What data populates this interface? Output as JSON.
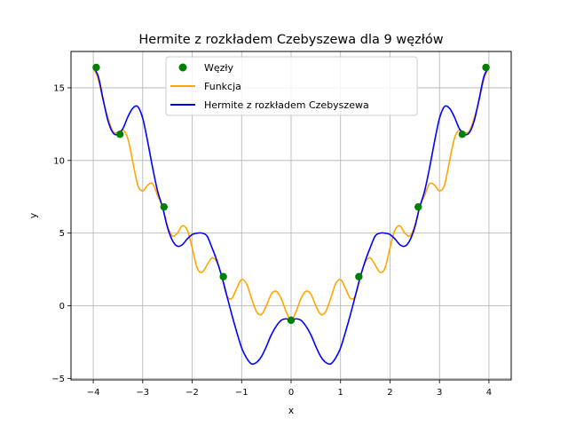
{
  "chart_data": {
    "type": "line",
    "title": "Hermite z rozkładem Czebyszewa dla 9 węzłów",
    "xlabel": "x",
    "ylabel": "y",
    "xlim": [
      -4.45,
      4.45
    ],
    "ylim": [
      -5.1,
      17.5
    ],
    "xticks": [
      -4,
      -3,
      -2,
      -1,
      0,
      1,
      2,
      3,
      4
    ],
    "yticks": [
      -5,
      0,
      5,
      10,
      15
    ],
    "grid": true,
    "legend_position": "top-center",
    "series": [
      {
        "name": "Węzły",
        "kind": "scatter",
        "color": "#008000",
        "x": [
          -3.94,
          -3.46,
          -2.57,
          -1.37,
          0.0,
          1.37,
          2.57,
          3.46,
          3.94
        ],
        "y": [
          16.4,
          11.8,
          6.8,
          2.0,
          -1.0,
          2.0,
          6.8,
          11.8,
          16.4
        ]
      },
      {
        "name": "Funkcja",
        "kind": "line",
        "color": "#FFA500",
        "x": [
          -4.0,
          -3.9,
          -3.8,
          -3.7,
          -3.6,
          -3.5,
          -3.4,
          -3.3,
          -3.2,
          -3.1,
          -3.0,
          -2.9,
          -2.8,
          -2.7,
          -2.6,
          -2.5,
          -2.4,
          -2.3,
          -2.2,
          -2.1,
          -2.0,
          -1.9,
          -1.8,
          -1.7,
          -1.6,
          -1.5,
          -1.4,
          -1.3,
          -1.2,
          -1.1,
          -1.0,
          -0.9,
          -0.8,
          -0.7,
          -0.6,
          -0.5,
          -0.4,
          -0.3,
          -0.2,
          -0.1,
          0.0,
          0.1,
          0.2,
          0.3,
          0.4,
          0.5,
          0.6,
          0.7,
          0.8,
          0.9,
          1.0,
          1.1,
          1.2,
          1.3,
          1.4,
          1.5,
          1.6,
          1.7,
          1.8,
          1.9,
          2.0,
          2.1,
          2.2,
          2.3,
          2.4,
          2.5,
          2.6,
          2.7,
          2.8,
          2.9,
          3.0,
          3.1,
          3.2,
          3.3,
          3.4,
          3.5,
          3.6,
          3.7,
          3.8,
          3.9,
          4.0
        ],
        "y": [
          16.4,
          15.6,
          14.1,
          12.9,
          12.0,
          11.9,
          12.1,
          11.5,
          9.9,
          8.3,
          7.9,
          8.3,
          8.4,
          7.6,
          6.8,
          5.5,
          4.8,
          5.0,
          5.5,
          5.2,
          4.0,
          2.6,
          2.3,
          2.8,
          3.3,
          3.0,
          2.0,
          0.7,
          0.5,
          1.2,
          1.8,
          1.5,
          0.5,
          -0.4,
          -0.6,
          0.0,
          0.8,
          1.0,
          0.5,
          -0.4,
          -1.0,
          -0.4,
          0.5,
          1.0,
          0.8,
          0.0,
          -0.6,
          -0.4,
          0.5,
          1.5,
          1.8,
          1.2,
          0.5,
          0.7,
          2.0,
          3.0,
          3.3,
          2.8,
          2.3,
          2.6,
          4.0,
          5.2,
          5.5,
          5.0,
          4.8,
          5.5,
          6.8,
          7.6,
          8.4,
          8.3,
          7.9,
          8.3,
          9.9,
          11.5,
          12.1,
          11.9,
          12.0,
          12.9,
          14.1,
          15.6,
          16.4
        ]
      },
      {
        "name": "Hermite z rozkładem Czebyszewa",
        "kind": "line",
        "color": "#0000FF",
        "x": [
          -4.0,
          -3.9,
          -3.8,
          -3.7,
          -3.6,
          -3.5,
          -3.4,
          -3.3,
          -3.2,
          -3.1,
          -3.0,
          -2.9,
          -2.8,
          -2.7,
          -2.6,
          -2.5,
          -2.4,
          -2.3,
          -2.2,
          -2.1,
          -2.0,
          -1.9,
          -1.8,
          -1.7,
          -1.6,
          -1.5,
          -1.4,
          -1.3,
          -1.2,
          -1.1,
          -1.0,
          -0.9,
          -0.8,
          -0.7,
          -0.6,
          -0.5,
          -0.4,
          -0.3,
          -0.2,
          -0.1,
          0.0,
          0.1,
          0.2,
          0.3,
          0.4,
          0.5,
          0.6,
          0.7,
          0.8,
          0.9,
          1.0,
          1.1,
          1.2,
          1.3,
          1.4,
          1.5,
          1.6,
          1.7,
          1.8,
          1.9,
          2.0,
          2.1,
          2.2,
          2.3,
          2.4,
          2.5,
          2.6,
          2.7,
          2.8,
          2.9,
          3.0,
          3.1,
          3.2,
          3.3,
          3.4,
          3.5,
          3.6,
          3.7,
          3.8,
          3.9,
          4.0
        ],
        "y": [
          16.4,
          15.8,
          14.2,
          12.7,
          11.9,
          11.8,
          12.2,
          13.0,
          13.6,
          13.7,
          12.9,
          11.3,
          9.5,
          7.9,
          6.8,
          5.4,
          4.5,
          4.1,
          4.2,
          4.6,
          4.9,
          5.0,
          5.0,
          4.8,
          4.0,
          3.1,
          2.0,
          0.7,
          -0.6,
          -1.8,
          -2.9,
          -3.6,
          -4.0,
          -3.9,
          -3.5,
          -2.8,
          -2.0,
          -1.4,
          -1.0,
          -0.9,
          -1.0,
          -0.9,
          -1.0,
          -1.4,
          -2.0,
          -2.8,
          -3.5,
          -3.9,
          -4.0,
          -3.6,
          -2.9,
          -1.8,
          -0.6,
          0.7,
          2.0,
          3.1,
          4.0,
          4.8,
          5.0,
          5.0,
          4.9,
          4.6,
          4.2,
          4.1,
          4.5,
          5.4,
          6.8,
          7.9,
          9.5,
          11.3,
          12.9,
          13.7,
          13.6,
          13.0,
          12.2,
          11.8,
          11.9,
          12.7,
          14.2,
          15.8,
          16.4
        ]
      }
    ]
  }
}
